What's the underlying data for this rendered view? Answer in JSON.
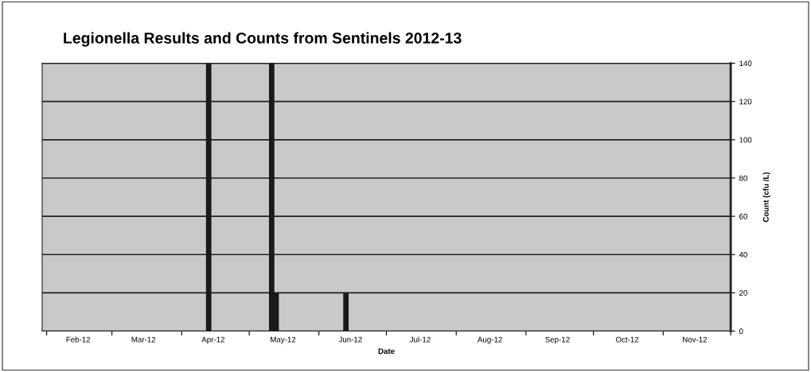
{
  "chart_data": {
    "type": "bar",
    "title": "Legionella Results and Counts from Sentinels 2012-13",
    "xlabel": "Date",
    "ylabel": "Count (cfu /L)",
    "x": [
      "2012-04-13",
      "2012-05-11",
      "2012-05-13",
      "2012-06-13"
    ],
    "values": [
      140,
      140,
      20,
      20
    ],
    "color": "#1a1a1a",
    "xlim": [
      "2012-01-30",
      "2012-12-01"
    ],
    "xticks": [
      {
        "value": "2012-02-01",
        "label": null
      },
      {
        "value": "2012-03-01",
        "label": null
      },
      {
        "value": "2012-04-01",
        "label": null
      },
      {
        "value": "2012-05-01",
        "label": null
      },
      {
        "value": "2012-06-01",
        "label": null
      },
      {
        "value": "2012-07-01",
        "label": null
      },
      {
        "value": "2012-08-01",
        "label": null
      },
      {
        "value": "2012-09-01",
        "label": null
      },
      {
        "value": "2012-10-01",
        "label": null
      },
      {
        "value": "2012-11-01",
        "label": null
      },
      {
        "value": "2012-12-01",
        "label": null
      },
      {
        "value": "2012-02-15",
        "label": "Feb-12"
      },
      {
        "value": "2012-03-15",
        "label": "Mar-12"
      },
      {
        "value": "2012-04-15",
        "label": "Apr-12"
      },
      {
        "value": "2012-05-16",
        "label": "May-12"
      },
      {
        "value": "2012-06-15",
        "label": "Jun-12"
      },
      {
        "value": "2012-07-16",
        "label": "Jul-12"
      },
      {
        "value": "2012-08-16",
        "label": "Aug-12"
      },
      {
        "value": "2012-09-15",
        "label": "Sep-12"
      },
      {
        "value": "2012-10-16",
        "label": "Oct-12"
      },
      {
        "value": "2012-11-15",
        "label": "Nov-12"
      }
    ],
    "ylim": [
      0,
      140
    ],
    "yticks": [
      0,
      20,
      40,
      60,
      80,
      100,
      120,
      140
    ],
    "grid": "y"
  }
}
